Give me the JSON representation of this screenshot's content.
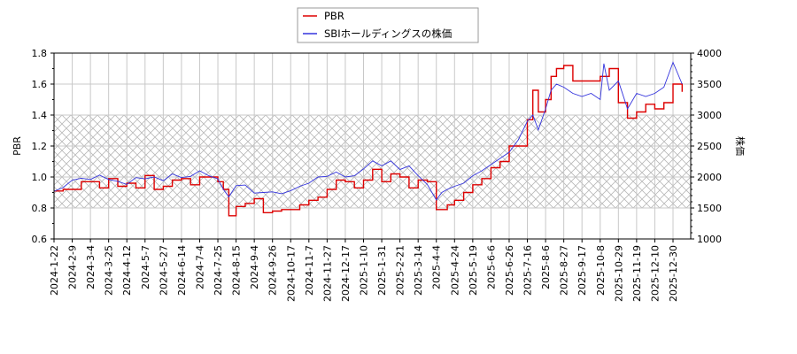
{
  "legend": {
    "items": [
      {
        "label": "PBR",
        "color": "#dd0000"
      },
      {
        "label": "SBIホールディングスの株価",
        "color": "#3333dd"
      }
    ]
  },
  "axes": {
    "left_label": "PBR",
    "right_label": "株価",
    "left_ticks": [
      "0.6",
      "0.8",
      "1.0",
      "1.2",
      "1.4",
      "1.6",
      "1.8"
    ],
    "right_ticks": [
      "1000",
      "1500",
      "2000",
      "2500",
      "3000",
      "3500",
      "4000"
    ]
  },
  "chart_data": {
    "type": "line",
    "title": "",
    "xlabel": "",
    "ylabel": "PBR",
    "ylabel_right": "株価",
    "ylim": [
      0.6,
      1.8
    ],
    "ylim_right": [
      1000,
      4000
    ],
    "grid": true,
    "legend_position": "top-center",
    "shaded_band": {
      "axis": "left",
      "from": 0.8,
      "to": 1.4,
      "pattern": "crosshatch"
    },
    "x_tick_labels": [
      "2024-1-22",
      "2024-2-9",
      "2024-3-4",
      "2024-3-25",
      "2024-4-12",
      "2024-5-7",
      "2024-5-27",
      "2024-6-14",
      "2024-7-4",
      "2024-7-25",
      "2024-8-15",
      "2024-9-4",
      "2024-9-26",
      "2024-10-17",
      "2024-11-7",
      "2024-11-27",
      "2024-12-17",
      "2025-1-10",
      "2025-1-31",
      "2025-2-21",
      "2025-3-14",
      "2025-4-4",
      "2025-4-24",
      "2025-5-19",
      "2025-6-6",
      "2025-6-26",
      "2025-7-16",
      "2025-8-6",
      "2025-8-27",
      "2025-9-17",
      "2025-10-8",
      "2025-10-29",
      "2025-11-19",
      "2025-12-10",
      "2025-12-30"
    ],
    "x_positions": [
      0,
      1,
      2,
      3,
      4,
      5,
      6,
      7,
      8,
      9,
      10,
      11,
      12,
      13,
      14,
      15,
      16,
      17,
      18,
      19,
      20,
      21,
      22,
      23,
      24,
      25,
      26,
      27,
      28,
      29,
      30,
      31,
      32,
      33,
      34
    ],
    "series": [
      {
        "name": "PBR",
        "axis": "left",
        "color": "#dd0000",
        "step": true,
        "x": [
          0,
          0.5,
          1,
          1.5,
          2,
          2.5,
          3,
          3.5,
          4,
          4.5,
          5,
          5.5,
          6,
          6.5,
          7,
          7.5,
          8,
          8.5,
          9,
          9.3,
          9.6,
          10,
          10.5,
          11,
          11.5,
          12,
          12.5,
          13,
          13.5,
          14,
          14.5,
          15,
          15.5,
          16,
          16.5,
          17,
          17.5,
          18,
          18.5,
          19,
          19.5,
          20,
          20.5,
          21,
          21.3,
          21.6,
          22,
          22.5,
          23,
          23.5,
          24,
          24.5,
          25,
          25.5,
          26,
          26.3,
          26.6,
          27,
          27.3,
          27.6,
          28,
          28.5,
          29,
          29.5,
          30,
          30.5,
          31,
          31.5,
          32,
          32.5,
          33,
          33.5,
          34,
          34.5
        ],
        "values": [
          0.91,
          0.92,
          0.92,
          0.97,
          0.97,
          0.93,
          0.99,
          0.94,
          0.96,
          0.93,
          1.01,
          0.92,
          0.94,
          0.98,
          0.99,
          0.95,
          1.0,
          1.0,
          0.97,
          0.92,
          0.75,
          0.81,
          0.83,
          0.86,
          0.77,
          0.78,
          0.79,
          0.79,
          0.82,
          0.85,
          0.87,
          0.92,
          0.98,
          0.97,
          0.93,
          0.98,
          1.05,
          0.97,
          1.02,
          1.0,
          0.93,
          0.98,
          0.97,
          0.79,
          0.79,
          0.82,
          0.85,
          0.9,
          0.95,
          0.99,
          1.06,
          1.1,
          1.2,
          1.2,
          1.37,
          1.56,
          1.42,
          1.5,
          1.65,
          1.7,
          1.72,
          1.62,
          1.62,
          1.62,
          1.65,
          1.7,
          1.48,
          1.38,
          1.42,
          1.47,
          1.44,
          1.48,
          1.6,
          1.55
        ]
      },
      {
        "name": "SBIホールディングスの株価",
        "axis": "right",
        "color": "#3333dd",
        "step": false,
        "x": [
          0,
          0.5,
          1,
          1.5,
          2,
          2.5,
          3,
          3.5,
          4,
          4.5,
          5,
          5.5,
          6,
          6.5,
          7,
          7.5,
          8,
          8.5,
          9,
          9.3,
          9.6,
          10,
          10.5,
          11,
          11.5,
          12,
          12.5,
          13,
          13.5,
          14,
          14.5,
          15,
          15.5,
          16,
          16.5,
          17,
          17.5,
          18,
          18.5,
          19,
          19.5,
          20,
          20.5,
          21,
          21.3,
          21.6,
          22,
          22.5,
          23,
          23.5,
          24,
          24.5,
          25,
          25.5,
          26,
          26.3,
          26.6,
          27,
          27.3,
          27.6,
          28,
          28.5,
          29,
          29.5,
          30,
          30.2,
          30.5,
          31,
          31.5,
          32,
          32.5,
          33,
          33.5,
          34,
          34.5
        ],
        "values": [
          1770,
          1830,
          1950,
          1980,
          1960,
          2030,
          1960,
          1930,
          1880,
          1990,
          1970,
          2000,
          1940,
          2050,
          1990,
          2010,
          2100,
          2020,
          1970,
          1800,
          1680,
          1860,
          1870,
          1740,
          1750,
          1760,
          1730,
          1780,
          1850,
          1900,
          2000,
          2010,
          2080,
          2000,
          2020,
          2130,
          2260,
          2180,
          2260,
          2120,
          2180,
          2020,
          1880,
          1630,
          1750,
          1800,
          1850,
          1900,
          2020,
          2100,
          2200,
          2300,
          2400,
          2600,
          2900,
          3000,
          2760,
          3100,
          3400,
          3500,
          3450,
          3350,
          3300,
          3350,
          3250,
          3830,
          3400,
          3550,
          3100,
          3350,
          3300,
          3350,
          3450,
          3850,
          3500
        ]
      }
    ]
  }
}
